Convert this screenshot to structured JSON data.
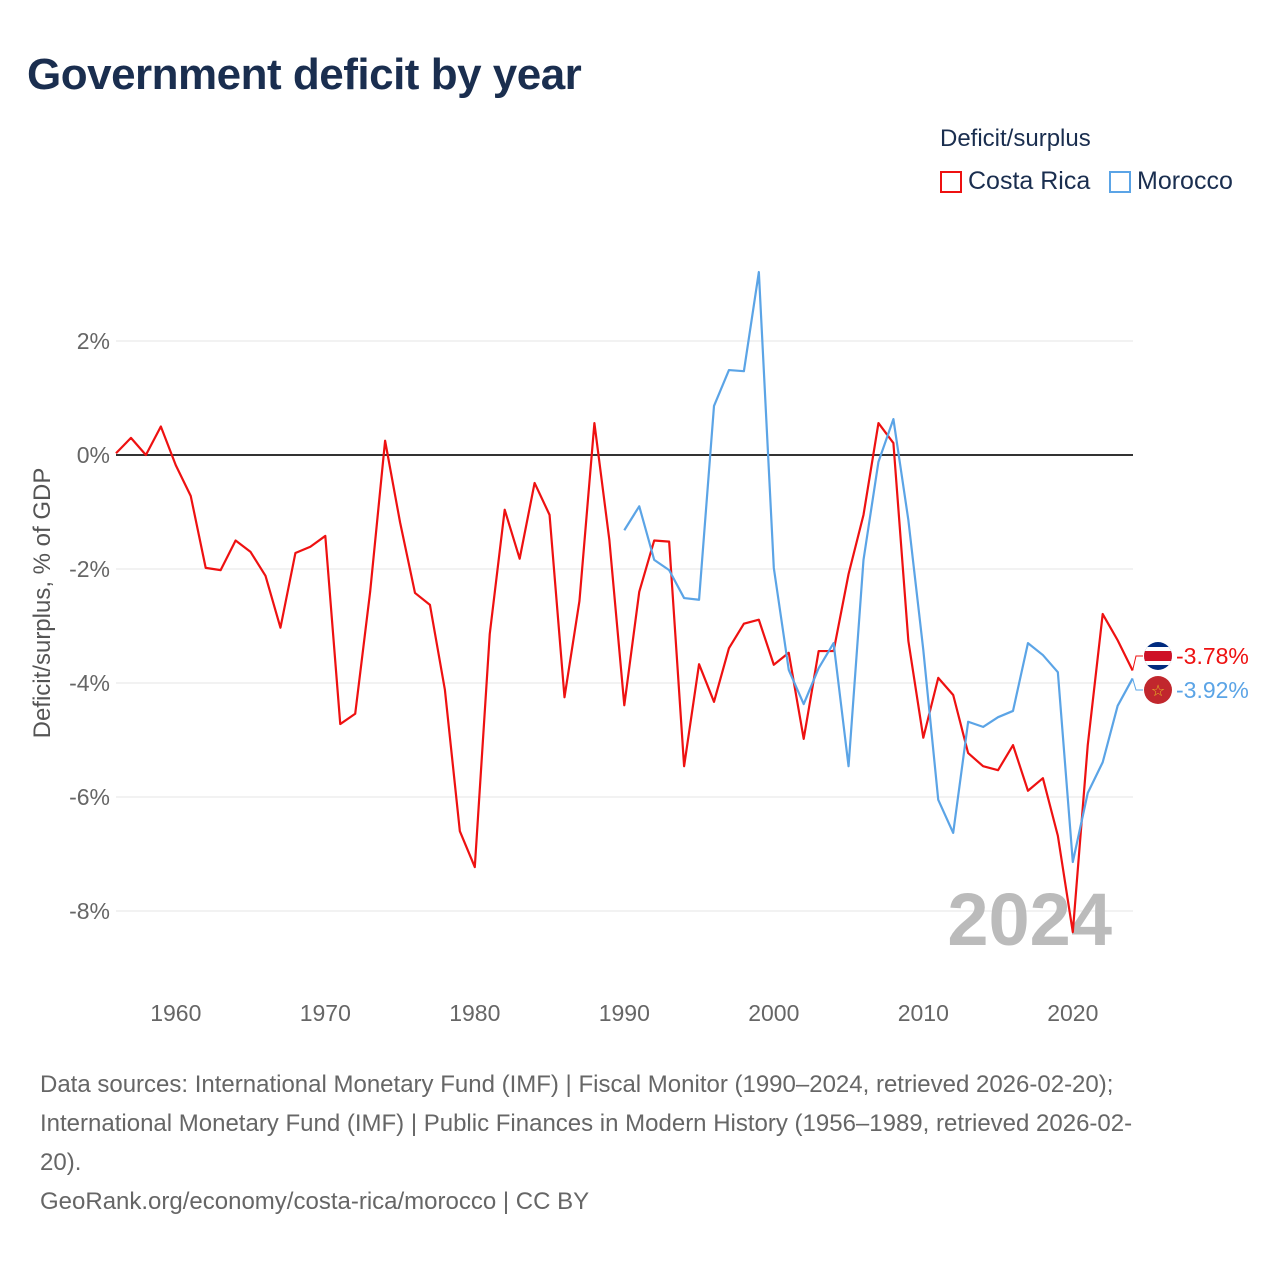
{
  "title": "Government deficit by year",
  "legend": {
    "title": "Deficit/surplus",
    "items": [
      {
        "name": "Costa Rica",
        "color": "#ee1111"
      },
      {
        "name": "Morocco",
        "color": "#5ba4e6"
      }
    ]
  },
  "chart_data": {
    "type": "line",
    "title": "Government deficit by year",
    "xlabel": "",
    "ylabel": "Deficit/surplus, % of GDP",
    "xlim": [
      1956,
      2024
    ],
    "ylim": [
      -9,
      3.3
    ],
    "yticks": [
      2,
      0,
      -2,
      -4,
      -6,
      -8
    ],
    "ytick_labels": [
      "2%",
      "0%",
      "-2%",
      "-4%",
      "-6%",
      "-8%"
    ],
    "xticks": [
      1960,
      1970,
      1980,
      1990,
      2000,
      2010,
      2020
    ],
    "xtick_labels": [
      "1960",
      "1970",
      "1980",
      "1990",
      "2000",
      "2010",
      "2020"
    ],
    "grid": true,
    "legend_position": "top-right",
    "year_label": "2024",
    "series": [
      {
        "name": "Costa Rica",
        "color": "#ee1111",
        "end_label": "-3.78%",
        "x": [
          1956,
          1957,
          1958,
          1959,
          1960,
          1961,
          1962,
          1963,
          1964,
          1965,
          1966,
          1967,
          1968,
          1969,
          1970,
          1971,
          1972,
          1973,
          1974,
          1975,
          1976,
          1977,
          1978,
          1979,
          1980,
          1981,
          1982,
          1983,
          1984,
          1985,
          1986,
          1987,
          1988,
          1989,
          1990,
          1991,
          1992,
          1993,
          1994,
          1995,
          1996,
          1997,
          1998,
          1999,
          2000,
          2001,
          2002,
          2003,
          2004,
          2005,
          2006,
          2007,
          2008,
          2009,
          2010,
          2011,
          2012,
          2013,
          2014,
          2015,
          2016,
          2017,
          2018,
          2019,
          2020,
          2021,
          2022,
          2023,
          2024
        ],
        "values": [
          0.03,
          0.3,
          0.0,
          0.5,
          -0.18,
          -0.72,
          -1.98,
          -2.02,
          -1.5,
          -1.7,
          -2.12,
          -3.03,
          -1.72,
          -1.61,
          -1.42,
          -4.72,
          -4.54,
          -2.4,
          0.25,
          -1.18,
          -2.42,
          -2.63,
          -4.12,
          -6.6,
          -7.23,
          -3.14,
          -0.96,
          -1.82,
          -0.49,
          -1.05,
          -4.25,
          -2.56,
          0.56,
          -1.49,
          -4.39,
          -2.4,
          -1.5,
          -1.52,
          -5.46,
          -3.67,
          -4.33,
          -3.39,
          -2.96,
          -2.89,
          -3.68,
          -3.47,
          -4.98,
          -3.44,
          -3.44,
          -2.09,
          -1.05,
          0.56,
          0.21,
          -3.26,
          -4.96,
          -3.91,
          -4.21,
          -5.23,
          -5.46,
          -5.53,
          -5.09,
          -5.89,
          -5.67,
          -6.68,
          -8.37,
          -5.09,
          -2.79,
          -3.25,
          -3.78
        ]
      },
      {
        "name": "Morocco",
        "color": "#5ba4e6",
        "end_label": "-3.92%",
        "x": [
          1990,
          1991,
          1992,
          1993,
          1994,
          1995,
          1996,
          1997,
          1998,
          1999,
          2000,
          2001,
          2002,
          2003,
          2004,
          2005,
          2006,
          2007,
          2008,
          2009,
          2010,
          2011,
          2012,
          2013,
          2014,
          2015,
          2016,
          2017,
          2018,
          2019,
          2020,
          2021,
          2022,
          2023,
          2024
        ],
        "values": [
          -1.32,
          -0.9,
          -1.84,
          -2.02,
          -2.51,
          -2.54,
          0.86,
          1.49,
          1.47,
          3.21,
          -1.98,
          -3.77,
          -4.37,
          -3.74,
          -3.3,
          -5.46,
          -1.84,
          -0.12,
          0.63,
          -1.14,
          -3.42,
          -6.05,
          -6.63,
          -4.68,
          -4.77,
          -4.6,
          -4.49,
          -3.3,
          -3.51,
          -3.81,
          -7.14,
          -5.93,
          -5.39,
          -4.4,
          -3.92
        ]
      }
    ]
  },
  "sources": {
    "line1": "Data sources: International Monetary Fund (IMF) | Fiscal Monitor (1990–2024, retrieved 2026-02-20);",
    "line2": "International Monetary Fund (IMF) | Public Finances in Modern History (1956–1989, retrieved 2026-02-",
    "line3": "20).",
    "line4": "GeoRank.org/economy/costa-rica/morocco | CC BY"
  }
}
